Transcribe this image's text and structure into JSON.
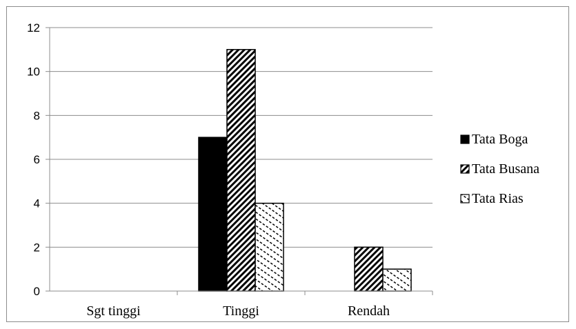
{
  "chart_data": {
    "type": "bar",
    "categories": [
      "Sgt tinggi",
      "Tinggi",
      "Rendah"
    ],
    "series": [
      {
        "name": "Tata Boga",
        "values": [
          0,
          7,
          0
        ],
        "fill": "solid-black"
      },
      {
        "name": "Tata Busana",
        "values": [
          0,
          11,
          2
        ],
        "fill": "dense-diagonal-hatch"
      },
      {
        "name": "Tata Rias",
        "values": [
          0,
          4,
          1
        ],
        "fill": "sparse-diagonal-hatch"
      }
    ],
    "yticks": [
      "0",
      "2",
      "4",
      "6",
      "8",
      "10",
      "12"
    ],
    "ylim": [
      0,
      12
    ],
    "grid": true,
    "legend_position": "right",
    "colors": {
      "bar_outline": "#000000",
      "gridline": "#8c8c8c",
      "frame": "#8c8c8c"
    }
  }
}
